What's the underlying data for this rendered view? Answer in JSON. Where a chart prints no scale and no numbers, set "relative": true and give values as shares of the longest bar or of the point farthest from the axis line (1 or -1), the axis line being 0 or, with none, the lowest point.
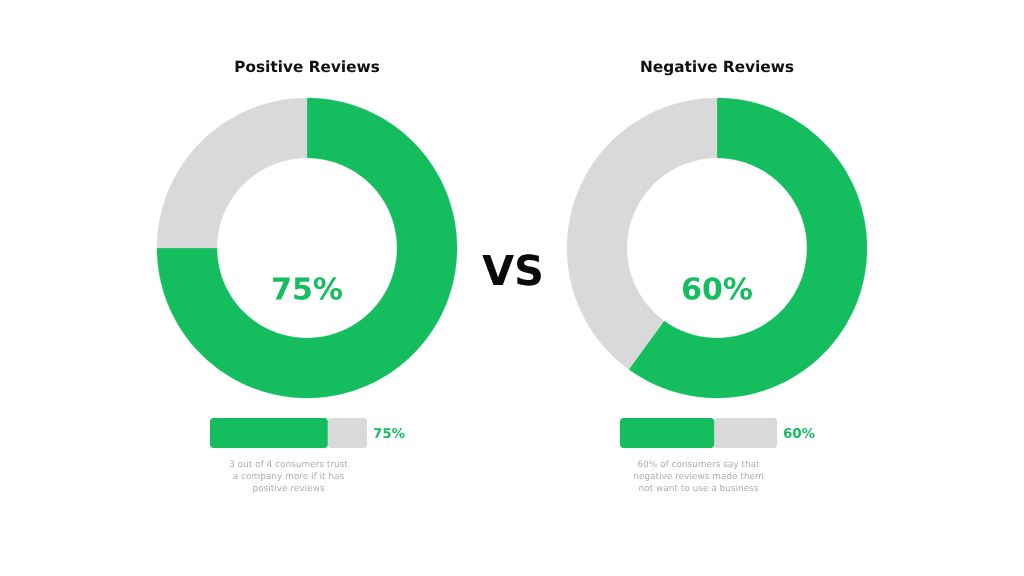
{
  "chart_data": [
    {
      "type": "donut",
      "title": "Positive Reviews",
      "categories": [
        null,
        null
      ],
      "values": [
        75,
        25
      ],
      "colors": [
        "#14be5f",
        "#d9d9d9"
      ],
      "value_labels": [
        "75%",
        null
      ]
    },
    {
      "type": "bar",
      "orientation": "horizontal",
      "stacked": true,
      "relative": true,
      "categories": [
        null
      ],
      "series": [
        {
          "values": [
            0.75
          ],
          "color": "#14be5f"
        },
        {
          "values": [
            0.25
          ],
          "color": "#d9d9d9"
        }
      ],
      "annotations": [
        "75%",
        "3 out of 4 consumers trust a company more if it has positive reviews"
      ]
    },
    {
      "type": "other",
      "annotations": [
        "VS"
      ]
    },
    {
      "type": "donut",
      "title": "Negative Reviews",
      "categories": [
        null,
        null
      ],
      "values": [
        60,
        40
      ],
      "colors": [
        "#14be5f",
        "#d9d9d9"
      ],
      "value_labels": [
        "60%",
        null
      ]
    },
    {
      "type": "bar",
      "orientation": "horizontal",
      "stacked": true,
      "relative": true,
      "categories": [
        null
      ],
      "series": [
        {
          "values": [
            0.6
          ],
          "color": "#14be5f"
        },
        {
          "values": [
            0.4
          ],
          "color": "#d9d9d9"
        }
      ],
      "annotations": [
        "60%",
        "60% of consumers say that negative reviews made them not want to use a business"
      ]
    }
  ]
}
